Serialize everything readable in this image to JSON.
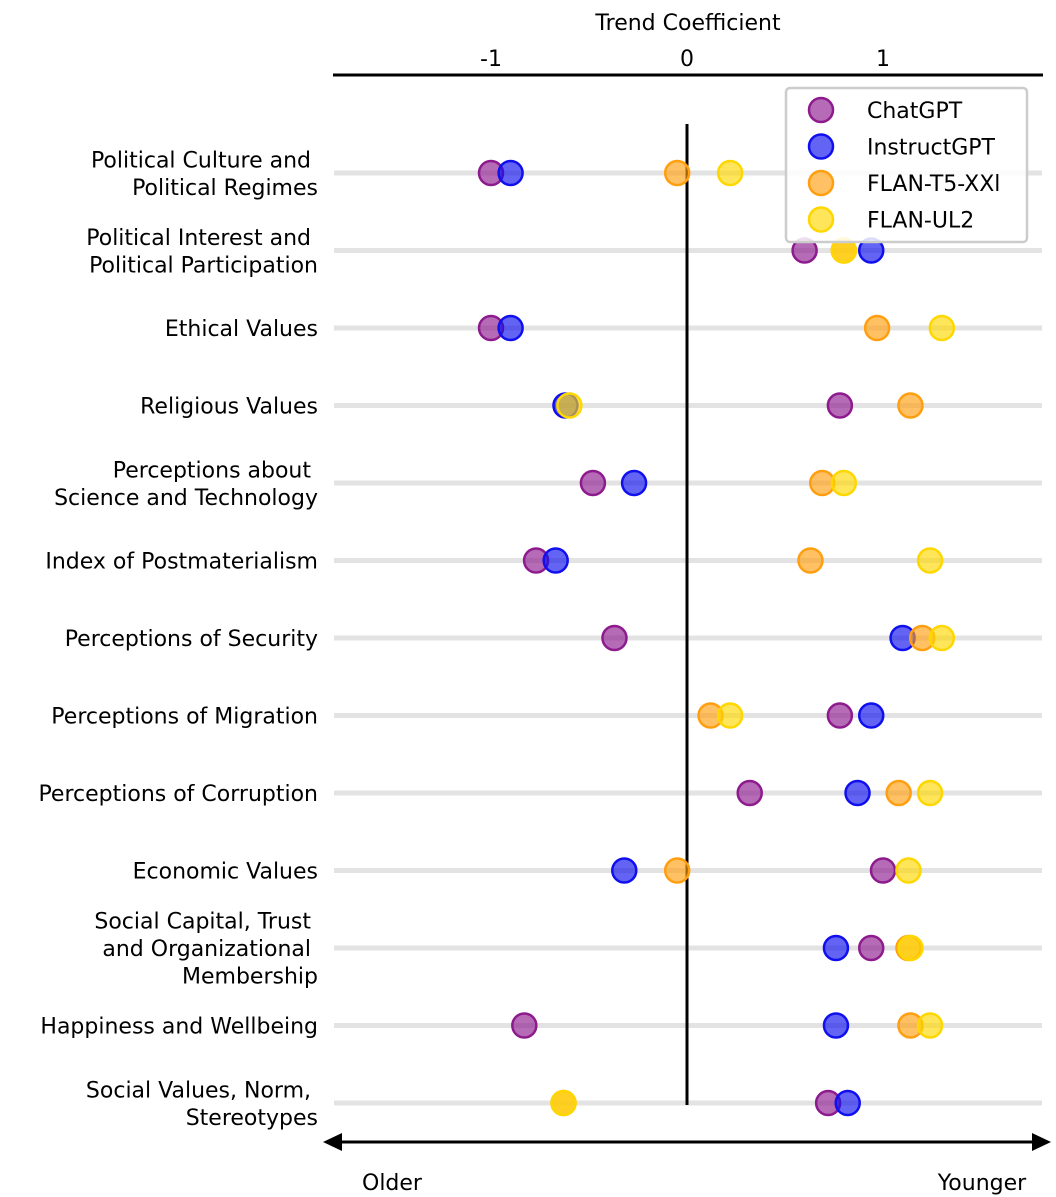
{
  "chart_data": {
    "type": "scatter",
    "xlabel": "Trend Coefficient",
    "xticks": [
      "-1",
      "0",
      "1"
    ],
    "xtick_values": [
      -1,
      0,
      1
    ],
    "xlim": [
      -1.8,
      1.8
    ],
    "direction_left": "Older",
    "direction_right": "Younger",
    "categories": [
      [
        "Political Culture and ",
        "Political Regimes"
      ],
      [
        "Political Interest and ",
        "Political Participation"
      ],
      [
        "Ethical Values"
      ],
      [
        "Religious Values"
      ],
      [
        "Perceptions about ",
        "Science and Technology"
      ],
      [
        "Index of Postmaterialism"
      ],
      [
        "Perceptions of Security"
      ],
      [
        "Perceptions of Migration"
      ],
      [
        "Perceptions of Corruption"
      ],
      [
        "Economic Values"
      ],
      [
        "Social Capital, Trust ",
        "and Organizational ",
        "Membership"
      ],
      [
        "Happiness and Wellbeing"
      ],
      [
        "Social Values, Norm, ",
        "Stereotypes"
      ]
    ],
    "series": [
      {
        "name": "ChatGPT",
        "color": "#8e1b8e",
        "values": [
          -1.0,
          0.6,
          -1.0,
          0.78,
          -0.48,
          -0.77,
          -0.37,
          0.78,
          0.32,
          1.0,
          0.94,
          -0.83,
          0.72
        ]
      },
      {
        "name": "InstructGPT",
        "color": "#1010ee",
        "values": [
          -0.9,
          0.94,
          -0.9,
          -0.62,
          -0.27,
          -0.67,
          1.1,
          0.94,
          0.87,
          -0.32,
          0.76,
          0.76,
          0.82
        ]
      },
      {
        "name": "FLAN-T5-XXl",
        "color": "#ff9f10",
        "values": [
          -0.05,
          0.8,
          0.97,
          1.14,
          0.69,
          0.63,
          1.2,
          0.12,
          1.08,
          -0.05,
          1.13,
          1.14,
          -0.63
        ]
      },
      {
        "name": "FLAN-UL2",
        "color": "#ffd700",
        "values": [
          0.22,
          0.8,
          1.3,
          -0.6,
          0.8,
          1.24,
          1.3,
          0.22,
          1.24,
          1.13,
          1.14,
          1.24,
          -0.63
        ]
      }
    ],
    "legend_position": "top-right",
    "zero_line": true
  }
}
